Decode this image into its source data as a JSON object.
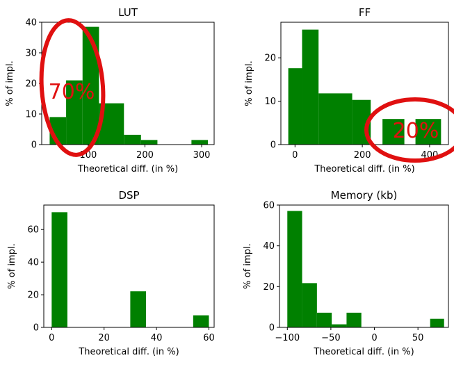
{
  "colors": {
    "bar": "#008000",
    "annotation": "#e01010",
    "axis": "#000000"
  },
  "chart_data": [
    {
      "type": "bar",
      "title": "LUT",
      "xlabel": "Theoretical diff. (in %)",
      "ylabel": "% of impl.",
      "xlim": [
        18,
        322
      ],
      "ylim": [
        0,
        40
      ],
      "xticks": [
        100,
        200,
        300
      ],
      "yticks": [
        0,
        10,
        20,
        30,
        40
      ],
      "bins": [
        {
          "x0": 32,
          "x1": 61,
          "value": 9
        },
        {
          "x0": 61,
          "x1": 90,
          "value": 21
        },
        {
          "x0": 90,
          "x1": 119,
          "value": 38.5
        },
        {
          "x0": 119,
          "x1": 163,
          "value": 13.5
        },
        {
          "x0": 163,
          "x1": 193,
          "value": 3.2
        },
        {
          "x0": 193,
          "x1": 222,
          "value": 1.5
        },
        {
          "x0": 282,
          "x1": 311,
          "value": 1.5
        }
      ],
      "annotation": {
        "text": "70%",
        "target": "left bins (circled)"
      }
    },
    {
      "type": "bar",
      "title": "FF",
      "xlabel": "Theoretical diff. (in %)",
      "ylabel": "% of impl.",
      "xlim": [
        -42,
        456
      ],
      "ylim": [
        0,
        28.2
      ],
      "xticks": [
        0,
        200,
        400
      ],
      "yticks": [
        0,
        10,
        20
      ],
      "bins": [
        {
          "x0": -20,
          "x1": 21,
          "value": 17.6
        },
        {
          "x0": 21,
          "x1": 70,
          "value": 26.5
        },
        {
          "x0": 70,
          "x1": 170,
          "value": 11.8
        },
        {
          "x0": 170,
          "x1": 225,
          "value": 10.3
        },
        {
          "x0": 260,
          "x1": 325,
          "value": 5.9
        },
        {
          "x0": 358,
          "x1": 434,
          "value": 5.9
        }
      ],
      "annotation": {
        "text": "20%",
        "target": "right bins (circled)"
      }
    },
    {
      "type": "bar",
      "title": "DSP",
      "xlabel": "Theoretical diff. (in %)",
      "ylabel": "% of impl.",
      "xlim": [
        -3,
        62
      ],
      "ylim": [
        0,
        75
      ],
      "xticks": [
        0,
        20,
        40,
        60
      ],
      "yticks": [
        0,
        20,
        40,
        60
      ],
      "bins": [
        {
          "x0": 0,
          "x1": 6,
          "value": 70.6
        },
        {
          "x0": 30,
          "x1": 36,
          "value": 22.1
        },
        {
          "x0": 54,
          "x1": 60,
          "value": 7.4
        }
      ]
    },
    {
      "type": "bar",
      "title": "Memory (kb)",
      "xlabel": "Theoretical diff. (in %)",
      "ylabel": "% of impl.",
      "xlim": [
        -109,
        85
      ],
      "ylim": [
        0,
        60
      ],
      "xticks": [
        -100,
        -50,
        0,
        50
      ],
      "yticks": [
        0,
        20,
        40,
        60
      ],
      "bins": [
        {
          "x0": -100,
          "x1": -83,
          "value": 57.1
        },
        {
          "x0": -83,
          "x1": -66,
          "value": 21.7
        },
        {
          "x0": -66,
          "x1": -49,
          "value": 7.2
        },
        {
          "x0": -49,
          "x1": -32,
          "value": 1.5
        },
        {
          "x0": -32,
          "x1": -15,
          "value": 7.2
        },
        {
          "x0": 64,
          "x1": 80,
          "value": 4.2
        }
      ]
    }
  ]
}
